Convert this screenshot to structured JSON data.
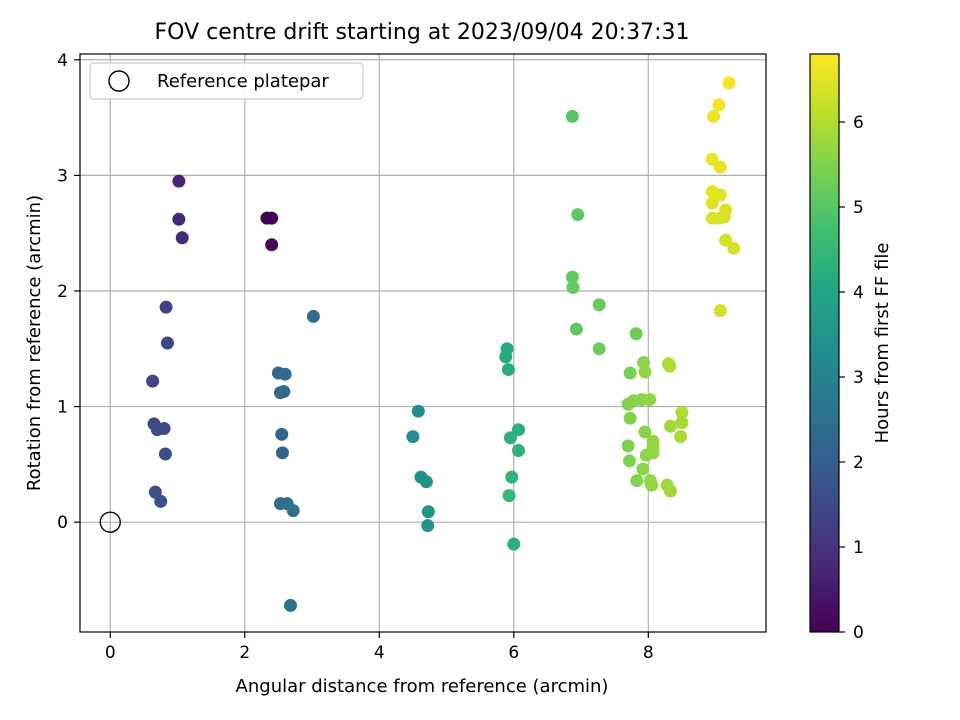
{
  "chart_data": {
    "type": "scatter",
    "title": "FOV centre drift starting at 2023/09/04 20:37:31",
    "xlabel": "Angular distance from reference (arcmin)",
    "ylabel": "Rotation from reference (arcmin)",
    "xlim": [
      -0.45,
      9.75
    ],
    "ylim": [
      -0.95,
      4.05
    ],
    "x_ticks": [
      0,
      2,
      4,
      6,
      8
    ],
    "y_ticks": [
      0,
      1,
      2,
      3,
      4
    ],
    "grid": true,
    "legend": {
      "position": "top-left",
      "entries": [
        "Reference platepar"
      ]
    },
    "reference_point": {
      "x": 0,
      "y": 0,
      "label": "Reference platepar"
    },
    "colorbar": {
      "label": "Hours from first FF file",
      "colormap": "viridis",
      "range": [
        0,
        6.8
      ],
      "ticks": [
        0,
        1,
        2,
        3,
        4,
        5,
        6
      ]
    },
    "points": [
      {
        "x": 2.33,
        "y": 2.63,
        "c": 0.0
      },
      {
        "x": 2.4,
        "y": 2.63,
        "c": 0.05
      },
      {
        "x": 2.4,
        "y": 2.4,
        "c": 0.1
      },
      {
        "x": 1.02,
        "y": 2.95,
        "c": 0.7
      },
      {
        "x": 1.02,
        "y": 2.62,
        "c": 0.75
      },
      {
        "x": 1.07,
        "y": 2.46,
        "c": 0.8
      },
      {
        "x": 0.83,
        "y": 1.86,
        "c": 1.3
      },
      {
        "x": 0.85,
        "y": 1.55,
        "c": 1.35
      },
      {
        "x": 0.63,
        "y": 1.22,
        "c": 1.4
      },
      {
        "x": 0.65,
        "y": 0.85,
        "c": 1.45
      },
      {
        "x": 0.7,
        "y": 0.8,
        "c": 1.5
      },
      {
        "x": 0.8,
        "y": 0.81,
        "c": 1.55
      },
      {
        "x": 0.82,
        "y": 0.59,
        "c": 1.6
      },
      {
        "x": 0.67,
        "y": 0.26,
        "c": 1.65
      },
      {
        "x": 0.75,
        "y": 0.18,
        "c": 1.7
      },
      {
        "x": 3.02,
        "y": 1.78,
        "c": 2.4
      },
      {
        "x": 2.5,
        "y": 1.29,
        "c": 2.3
      },
      {
        "x": 2.6,
        "y": 1.28,
        "c": 2.35
      },
      {
        "x": 2.53,
        "y": 1.12,
        "c": 2.3
      },
      {
        "x": 2.58,
        "y": 1.13,
        "c": 2.35
      },
      {
        "x": 2.55,
        "y": 0.76,
        "c": 2.2
      },
      {
        "x": 2.56,
        "y": 0.6,
        "c": 2.25
      },
      {
        "x": 2.53,
        "y": 0.16,
        "c": 2.4
      },
      {
        "x": 2.63,
        "y": 0.16,
        "c": 2.45
      },
      {
        "x": 2.72,
        "y": 0.1,
        "c": 2.5
      },
      {
        "x": 2.68,
        "y": -0.72,
        "c": 2.6
      },
      {
        "x": 4.58,
        "y": 0.96,
        "c": 3.3
      },
      {
        "x": 4.5,
        "y": 0.74,
        "c": 3.35
      },
      {
        "x": 4.62,
        "y": 0.39,
        "c": 3.4
      },
      {
        "x": 4.7,
        "y": 0.35,
        "c": 3.45
      },
      {
        "x": 4.73,
        "y": 0.09,
        "c": 3.5
      },
      {
        "x": 4.72,
        "y": -0.03,
        "c": 3.55
      },
      {
        "x": 5.9,
        "y": 1.5,
        "c": 4.1
      },
      {
        "x": 5.88,
        "y": 1.43,
        "c": 4.15
      },
      {
        "x": 5.92,
        "y": 1.32,
        "c": 4.2
      },
      {
        "x": 6.07,
        "y": 0.8,
        "c": 4.25
      },
      {
        "x": 5.95,
        "y": 0.73,
        "c": 4.3
      },
      {
        "x": 6.07,
        "y": 0.62,
        "c": 4.35
      },
      {
        "x": 5.97,
        "y": 0.39,
        "c": 4.4
      },
      {
        "x": 5.93,
        "y": 0.23,
        "c": 4.45
      },
      {
        "x": 6.0,
        "y": -0.19,
        "c": 4.3
      },
      {
        "x": 6.87,
        "y": 3.51,
        "c": 5.0
      },
      {
        "x": 6.95,
        "y": 2.66,
        "c": 5.05
      },
      {
        "x": 6.87,
        "y": 2.12,
        "c": 5.1
      },
      {
        "x": 6.88,
        "y": 2.03,
        "c": 5.15
      },
      {
        "x": 7.27,
        "y": 1.88,
        "c": 5.2
      },
      {
        "x": 6.93,
        "y": 1.67,
        "c": 5.1
      },
      {
        "x": 7.27,
        "y": 1.5,
        "c": 5.25
      },
      {
        "x": 7.82,
        "y": 1.63,
        "c": 5.3
      },
      {
        "x": 7.73,
        "y": 1.29,
        "c": 5.4
      },
      {
        "x": 7.93,
        "y": 1.38,
        "c": 5.6
      },
      {
        "x": 7.95,
        "y": 1.3,
        "c": 5.65
      },
      {
        "x": 7.7,
        "y": 1.02,
        "c": 5.5
      },
      {
        "x": 7.78,
        "y": 1.05,
        "c": 5.55
      },
      {
        "x": 7.9,
        "y": 1.06,
        "c": 5.6
      },
      {
        "x": 8.02,
        "y": 1.06,
        "c": 5.65
      },
      {
        "x": 7.73,
        "y": 0.9,
        "c": 5.5
      },
      {
        "x": 7.95,
        "y": 0.78,
        "c": 5.6
      },
      {
        "x": 8.07,
        "y": 0.7,
        "c": 5.7
      },
      {
        "x": 8.07,
        "y": 0.65,
        "c": 5.75
      },
      {
        "x": 7.7,
        "y": 0.66,
        "c": 5.5
      },
      {
        "x": 7.97,
        "y": 0.58,
        "c": 5.6
      },
      {
        "x": 8.07,
        "y": 0.6,
        "c": 5.7
      },
      {
        "x": 7.72,
        "y": 0.53,
        "c": 5.5
      },
      {
        "x": 7.92,
        "y": 0.46,
        "c": 5.6
      },
      {
        "x": 7.83,
        "y": 0.36,
        "c": 5.55
      },
      {
        "x": 8.03,
        "y": 0.36,
        "c": 5.65
      },
      {
        "x": 8.05,
        "y": 0.32,
        "c": 5.7
      },
      {
        "x": 8.28,
        "y": 0.32,
        "c": 5.8
      },
      {
        "x": 8.33,
        "y": 0.27,
        "c": 5.85
      },
      {
        "x": 8.3,
        "y": 1.37,
        "c": 5.9
      },
      {
        "x": 8.32,
        "y": 1.35,
        "c": 5.95
      },
      {
        "x": 8.5,
        "y": 0.95,
        "c": 5.95
      },
      {
        "x": 8.5,
        "y": 0.86,
        "c": 5.9
      },
      {
        "x": 8.33,
        "y": 0.83,
        "c": 5.85
      },
      {
        "x": 8.48,
        "y": 0.74,
        "c": 5.9
      },
      {
        "x": 9.2,
        "y": 3.8,
        "c": 6.7
      },
      {
        "x": 9.05,
        "y": 3.61,
        "c": 6.65
      },
      {
        "x": 8.97,
        "y": 3.51,
        "c": 6.6
      },
      {
        "x": 8.95,
        "y": 3.14,
        "c": 6.6
      },
      {
        "x": 9.07,
        "y": 3.07,
        "c": 6.55
      },
      {
        "x": 8.95,
        "y": 2.86,
        "c": 6.55
      },
      {
        "x": 9.07,
        "y": 2.83,
        "c": 6.5
      },
      {
        "x": 8.95,
        "y": 2.76,
        "c": 6.5
      },
      {
        "x": 9.15,
        "y": 2.7,
        "c": 6.45
      },
      {
        "x": 8.95,
        "y": 2.63,
        "c": 6.45
      },
      {
        "x": 9.05,
        "y": 2.63,
        "c": 6.4
      },
      {
        "x": 9.13,
        "y": 2.64,
        "c": 6.4
      },
      {
        "x": 9.15,
        "y": 2.44,
        "c": 6.35
      },
      {
        "x": 9.27,
        "y": 2.37,
        "c": 6.35
      },
      {
        "x": 9.07,
        "y": 1.83,
        "c": 6.3
      }
    ]
  }
}
